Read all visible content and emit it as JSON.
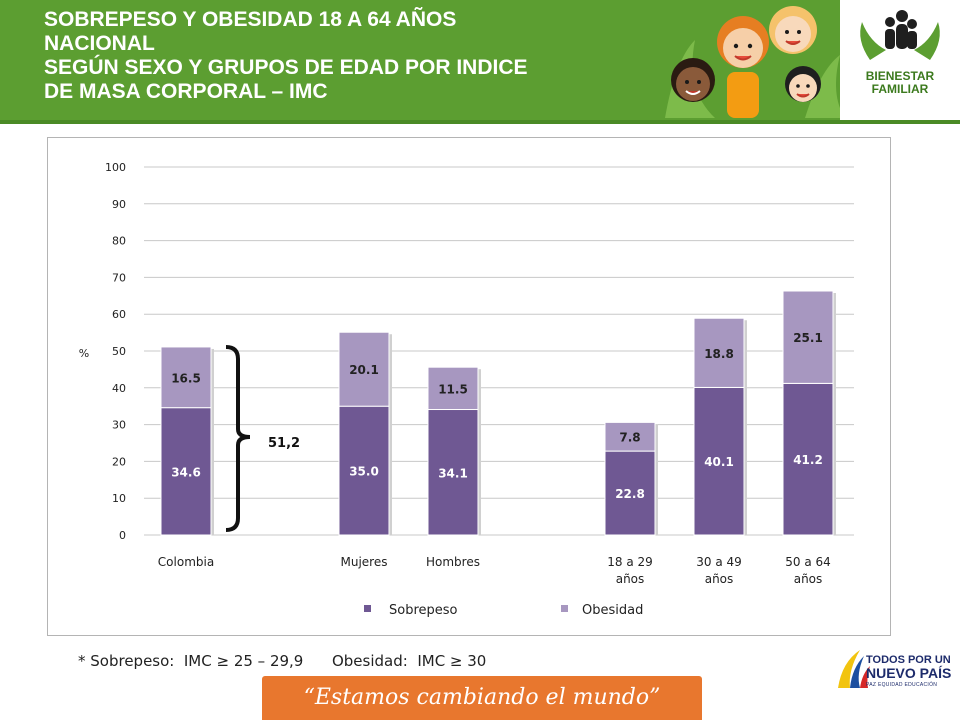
{
  "header": {
    "title_lines": [
      "SOBREPESO Y OBESIDAD 18 A 64 AÑOS",
      "NACIONAL",
      "SEGÚN SEXO Y GRUPOS DE EDAD  POR INDICE",
      "DE MASA CORPORAL – IMC"
    ],
    "logo_text_1": "BIENESTAR",
    "logo_text_2": "FAMILIAR"
  },
  "colors": {
    "header_green": "#5c9e31",
    "sobrepeso": "#6f5893",
    "obesidad": "#a797c0",
    "slogan_orange": "#e8772e"
  },
  "chart_data": {
    "type": "bar",
    "stacked": true,
    "categories": [
      "Colombia",
      "Mujeres",
      "Hombres",
      "18 a 29\naños",
      "30 a 49\naños",
      "50 a 64\naños"
    ],
    "series": [
      {
        "name": "Sobrepeso",
        "values": [
          34.6,
          35.0,
          34.1,
          22.8,
          40.1,
          41.2
        ]
      },
      {
        "name": "Obesidad",
        "values": [
          16.5,
          20.1,
          11.5,
          7.8,
          18.8,
          25.1
        ]
      }
    ],
    "data_labels_sobrepeso": [
      "34.6",
      "35.0",
      "34.1",
      "22.8",
      "40.1",
      "41.2"
    ],
    "data_labels_obesidad": [
      "16.5",
      "20.1",
      "11.5",
      "7.8",
      "18.8",
      "25.1"
    ],
    "ylabel": "%",
    "ylim": [
      0,
      100
    ],
    "yticks": [
      0,
      10,
      20,
      30,
      40,
      50,
      60,
      70,
      80,
      90,
      100
    ],
    "grid": true,
    "legend_position": "bottom",
    "annotation": {
      "label": "51,2",
      "category": "Colombia"
    }
  },
  "footnote": "* Sobrepeso:  IMC ≥ 25 – 29,9      Obesidad:  IMC ≥ 30",
  "slogan": "“Estamos cambiando el mundo”",
  "brand": {
    "line1": "TODOS POR UN",
    "line2": "NUEVO PAÍS",
    "line3": "PAZ  EQUIDAD  EDUCACIÓN"
  }
}
